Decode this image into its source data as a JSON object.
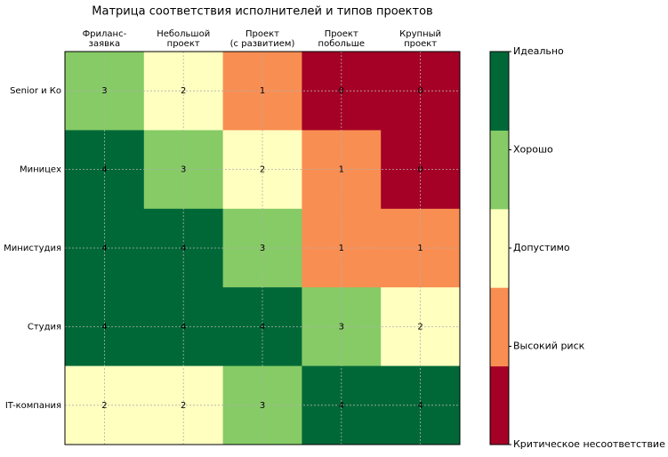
{
  "chart_data": {
    "type": "heatmap",
    "title": "Матрица соответствия исполнителей и типов проектов",
    "x_categories": [
      [
        "Фриланс-",
        "заявка"
      ],
      [
        "Небольшой",
        "проект"
      ],
      [
        "Проект",
        "(с развитием)"
      ],
      [
        "Проект",
        "побольше"
      ],
      [
        "Крупный",
        "проект"
      ]
    ],
    "y_categories": [
      "Senior и Ко",
      "Миницех",
      "Министудия",
      "Студия",
      "IT-компания"
    ],
    "z": [
      [
        3,
        2,
        1,
        0,
        0
      ],
      [
        4,
        3,
        2,
        1,
        0
      ],
      [
        4,
        4,
        3,
        1,
        1
      ],
      [
        4,
        4,
        4,
        3,
        2
      ],
      [
        2,
        2,
        3,
        4,
        4
      ]
    ],
    "colors": [
      "#a50026",
      "#f98e52",
      "#ffffc0",
      "#86cb66",
      "#006837"
    ],
    "colorbar_lim": [
      0,
      4
    ],
    "colorbar_ticks": [
      {
        "value": 0,
        "label": "Критическое несоответствие"
      },
      {
        "value": 1,
        "label": "Высокий риск"
      },
      {
        "value": 2,
        "label": "Допустимо"
      },
      {
        "value": 3,
        "label": "Хорошо"
      },
      {
        "value": 4,
        "label": "Идеально"
      }
    ],
    "grid": true
  }
}
